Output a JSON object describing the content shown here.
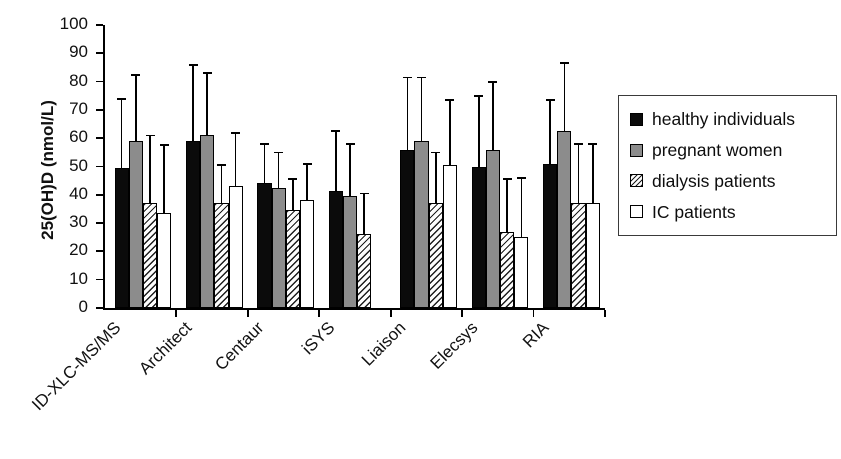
{
  "chart_data": {
    "type": "bar",
    "title": "",
    "xlabel": "",
    "ylabel": "25(OH)D (nmol/L)",
    "ylim": [
      0,
      100
    ],
    "yticks": [
      0,
      10,
      20,
      30,
      40,
      50,
      60,
      70,
      80,
      90,
      100
    ],
    "grid": false,
    "legend_position": "right",
    "error_bars": "upper-only",
    "categories": [
      "ID-XLC-MS/MS",
      "Architect",
      "Centaur",
      "iSYS",
      "Liaison",
      "Elecsys",
      "RIA"
    ],
    "series": [
      {
        "name": "healthy individuals",
        "fill": "black",
        "color": "#0b0b0b",
        "values": [
          49.5,
          59,
          44,
          41.5,
          56,
          50,
          51
        ],
        "errors_upper": [
          24.5,
          27,
          14,
          21,
          25.5,
          25,
          22.5
        ]
      },
      {
        "name": "pregnant women",
        "fill": "gray",
        "color": "#8c8c8c",
        "values": [
          59,
          61,
          42.5,
          39.5,
          59,
          56,
          62.5
        ],
        "errors_upper": [
          23.5,
          22,
          12.5,
          18.5,
          22.5,
          24,
          24
        ]
      },
      {
        "name": "dialysis patients",
        "fill": "hatch",
        "color": "#ffffff",
        "values": [
          37,
          37,
          34.5,
          26,
          37,
          27,
          37
        ],
        "errors_upper": [
          24,
          13.5,
          11,
          14.5,
          18,
          18.5,
          21
        ]
      },
      {
        "name": "IC patients",
        "fill": "white",
        "color": "#ffffff",
        "values": [
          33.5,
          43,
          38,
          null,
          50.5,
          25,
          37
        ],
        "errors_upper": [
          24,
          19,
          13,
          null,
          23,
          21,
          21
        ]
      }
    ]
  }
}
